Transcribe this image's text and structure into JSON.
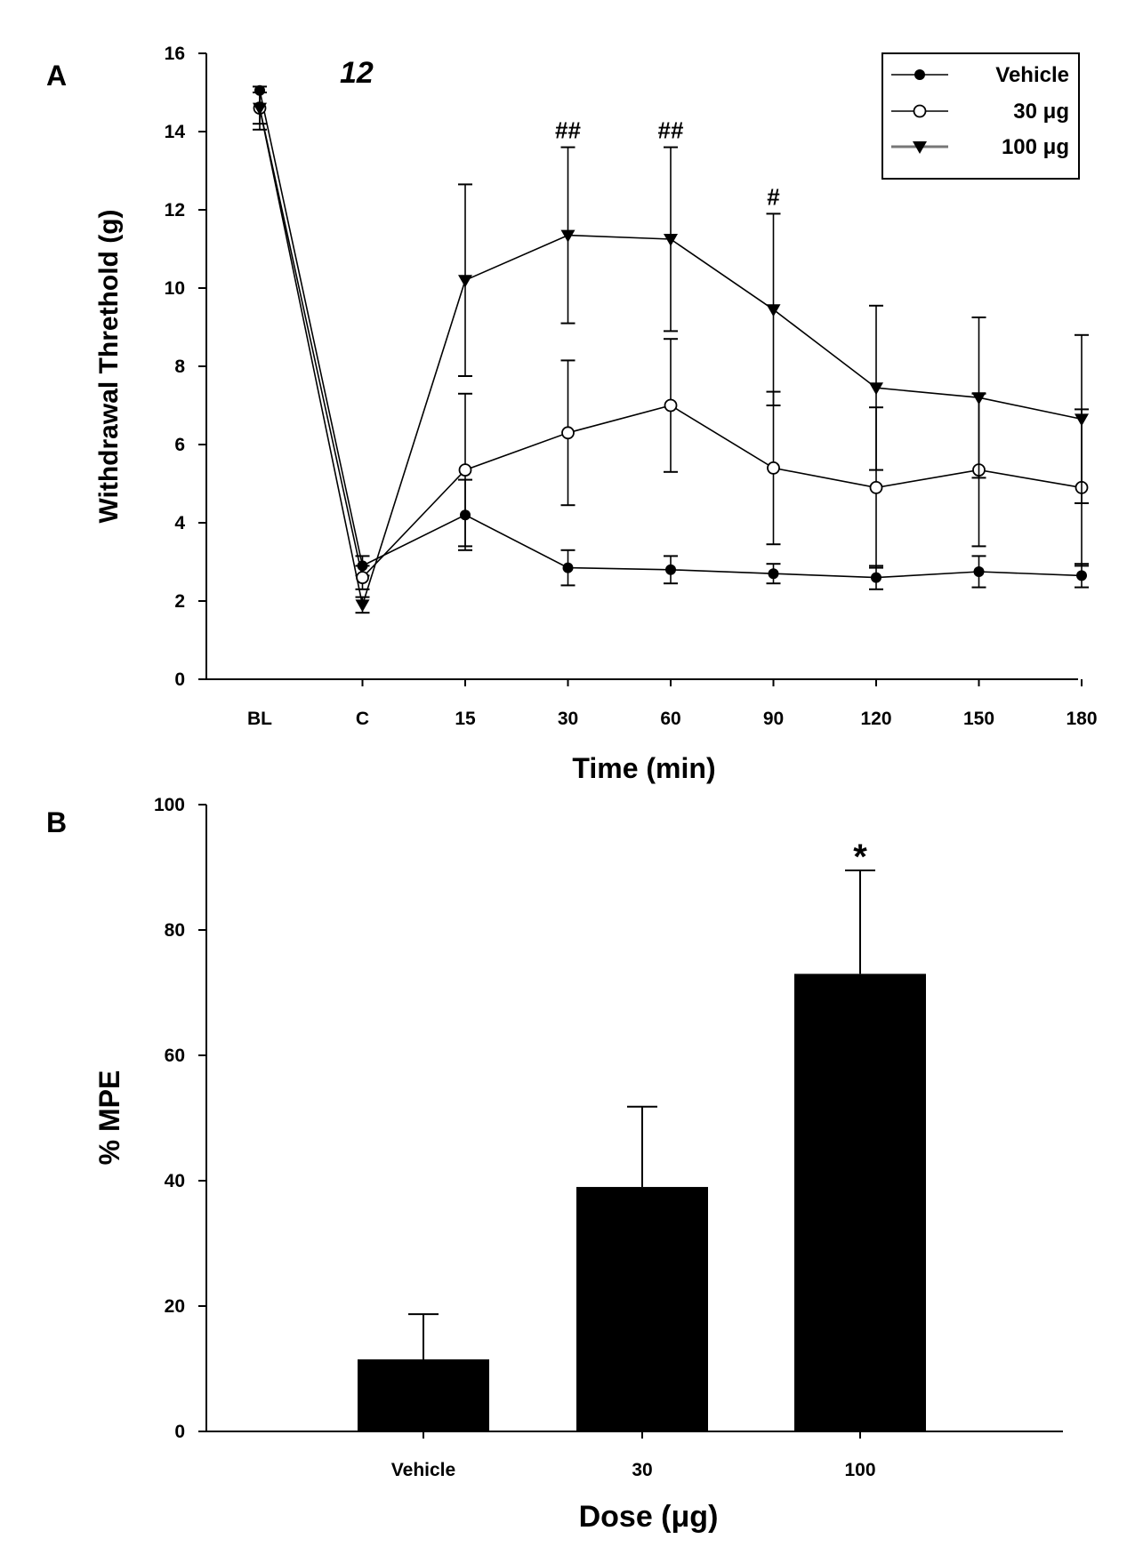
{
  "chart_data": [
    {
      "panel": "A",
      "type": "line",
      "compound_label": "12",
      "xlabel": "Time (min)",
      "ylabel": "Withdrawal Threthold (g)",
      "categories": [
        "BL",
        "C",
        "15",
        "30",
        "60",
        "90",
        "120",
        "150",
        "180"
      ],
      "ylim": [
        0,
        16
      ],
      "yticks": [
        "0",
        "2",
        "4",
        "6",
        "8",
        "10",
        "12",
        "14",
        "16"
      ],
      "legend_position": "top-right",
      "series": [
        {
          "name": "Vehicle",
          "marker": "filled-circle",
          "values": [
            15.05,
            2.9,
            4.2,
            2.85,
            2.8,
            2.7,
            2.6,
            2.75,
            2.65
          ],
          "errors": [
            0.0,
            0.25,
            0.9,
            0.45,
            0.35,
            0.25,
            0.3,
            0.4,
            0.3
          ]
        },
        {
          "name": "30 μg",
          "marker": "open-circle",
          "values": [
            14.6,
            2.6,
            5.35,
            6.3,
            7.0,
            5.4,
            4.9,
            5.35,
            4.9
          ],
          "errors": [
            0.4,
            0.3,
            1.95,
            1.85,
            1.7,
            1.95,
            2.05,
            1.95,
            2.0
          ]
        },
        {
          "name": "100 μg",
          "marker": "filled-triangle-down",
          "values": [
            14.6,
            1.9,
            10.2,
            11.35,
            11.25,
            9.45,
            7.45,
            7.2,
            6.65
          ],
          "errors": [
            0.55,
            0.2,
            2.45,
            2.25,
            2.35,
            2.45,
            2.1,
            2.05,
            2.15
          ]
        }
      ],
      "annotations": [
        {
          "category": "30",
          "text": "##"
        },
        {
          "category": "60",
          "text": "##"
        },
        {
          "category": "90",
          "text": "#"
        }
      ]
    },
    {
      "panel": "B",
      "type": "bar",
      "xlabel": "Dose (μg)",
      "ylabel": "% MPE",
      "categories": [
        "Vehicle",
        "30",
        "100"
      ],
      "values": [
        11.5,
        39,
        73
      ],
      "errors": [
        7.2,
        12.8,
        16.5
      ],
      "ylim": [
        0,
        100
      ],
      "yticks": [
        "0",
        "20",
        "40",
        "60",
        "80",
        "100"
      ],
      "annotations": [
        {
          "category": "100",
          "text": "*"
        }
      ]
    }
  ]
}
